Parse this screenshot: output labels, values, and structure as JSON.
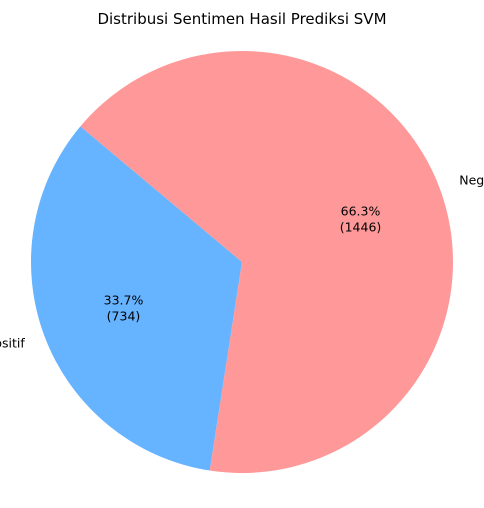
{
  "chart_data": {
    "type": "pie",
    "title": "Distribusi Sentimen Hasil Prediksi SVM",
    "slices": [
      {
        "label": "Positif",
        "value": 734,
        "percent_label": "33.7%",
        "count_label": "(734)",
        "color": "#66b3ff"
      },
      {
        "label": "Negatif",
        "value": 1446,
        "percent_label": "66.3%",
        "count_label": "(1446)",
        "color": "#ff9999"
      }
    ],
    "start_angle_deg": 140,
    "direction": "counterclockwise",
    "legend": "none"
  }
}
